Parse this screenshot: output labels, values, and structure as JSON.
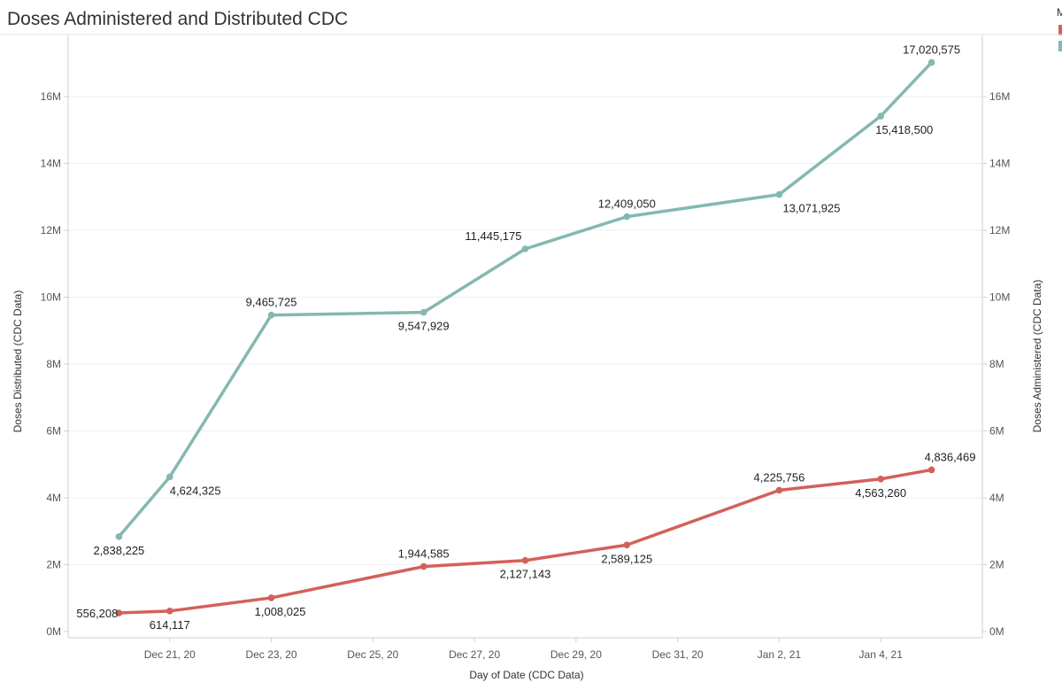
{
  "chart_data": {
    "type": "line",
    "title": "Doses Administered and Distributed CDC",
    "legend": {
      "title_fragment": "M",
      "placement": "top-right"
    },
    "xlabel": "Day of Date (CDC Data)",
    "ylabel_left": "Doses Distributed (CDC Data)",
    "ylabel_right": "Doses Administered (CDC Data)",
    "x_tick_labels": [
      "Dec 21, 20",
      "Dec 23, 20",
      "Dec 25, 20",
      "Dec 27, 20",
      "Dec 29, 20",
      "Dec 31, 20",
      "Jan 2, 21",
      "Jan 4, 21"
    ],
    "x_ticks": [
      "2020-12-21",
      "2020-12-23",
      "2020-12-25",
      "2020-12-27",
      "2020-12-29",
      "2020-12-31",
      "2021-01-02",
      "2021-01-04"
    ],
    "y_ticks": [
      0,
      2000000,
      4000000,
      6000000,
      8000000,
      10000000,
      12000000,
      14000000,
      16000000
    ],
    "y_tick_labels": [
      "0M",
      "2M",
      "4M",
      "6M",
      "8M",
      "10M",
      "12M",
      "14M",
      "16M"
    ],
    "xlim": [
      "2020-12-19",
      "2021-01-06"
    ],
    "ylim": [
      0,
      17300000
    ],
    "grid": true,
    "series": [
      {
        "color": "#84b8b1",
        "axis": "left",
        "x": [
          "2020-12-20",
          "2020-12-21",
          "2020-12-23",
          "2020-12-26",
          "2020-12-28",
          "2020-12-30",
          "2021-01-02",
          "2021-01-04",
          "2021-01-05"
        ],
        "values": [
          2838225,
          4624325,
          9465725,
          9547929,
          11445175,
          12409050,
          13071925,
          15418500,
          17020575
        ],
        "labels": [
          "2,838,225",
          "4,624,325",
          "9,465,725",
          "9,547,929",
          "11,445,175",
          "12,409,050",
          "13,071,925",
          "15,418,500",
          "17,020,575"
        ]
      },
      {
        "color": "#d4605a",
        "axis": "right",
        "x": [
          "2020-12-20",
          "2020-12-21",
          "2020-12-23",
          "2020-12-26",
          "2020-12-28",
          "2020-12-30",
          "2021-01-02",
          "2021-01-04",
          "2021-01-05"
        ],
        "values": [
          556208,
          614117,
          1008025,
          1944585,
          2127143,
          2589125,
          4225756,
          4563260,
          4836469
        ],
        "labels": [
          "556,208",
          "614,117",
          "1,008,025",
          "1,944,585",
          "2,127,143",
          "2,589,125",
          "4,225,756",
          "4,563,260",
          "4,836,469"
        ]
      }
    ]
  }
}
